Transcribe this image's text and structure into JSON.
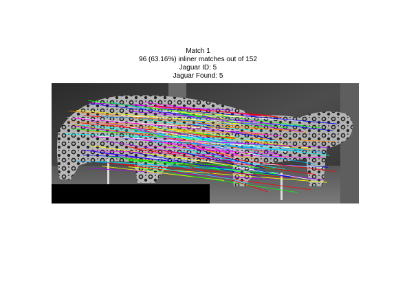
{
  "figure": {
    "title_lines": [
      "Match 1",
      "96 (63.16%) inliner matches out of 152",
      "Jaguar ID: 5",
      "Jaguar Found: 5"
    ],
    "image_description": "side-by-side grayscale camera-trap photos of a jaguar with colored feature-match lines",
    "match_line_colors": [
      "#ff00ff",
      "#00ffff",
      "#ffff00",
      "#ff0000",
      "#00ff00",
      "#0000ff",
      "#ff8800",
      "#00aaff",
      "#aa00ff",
      "#ffffff"
    ]
  }
}
